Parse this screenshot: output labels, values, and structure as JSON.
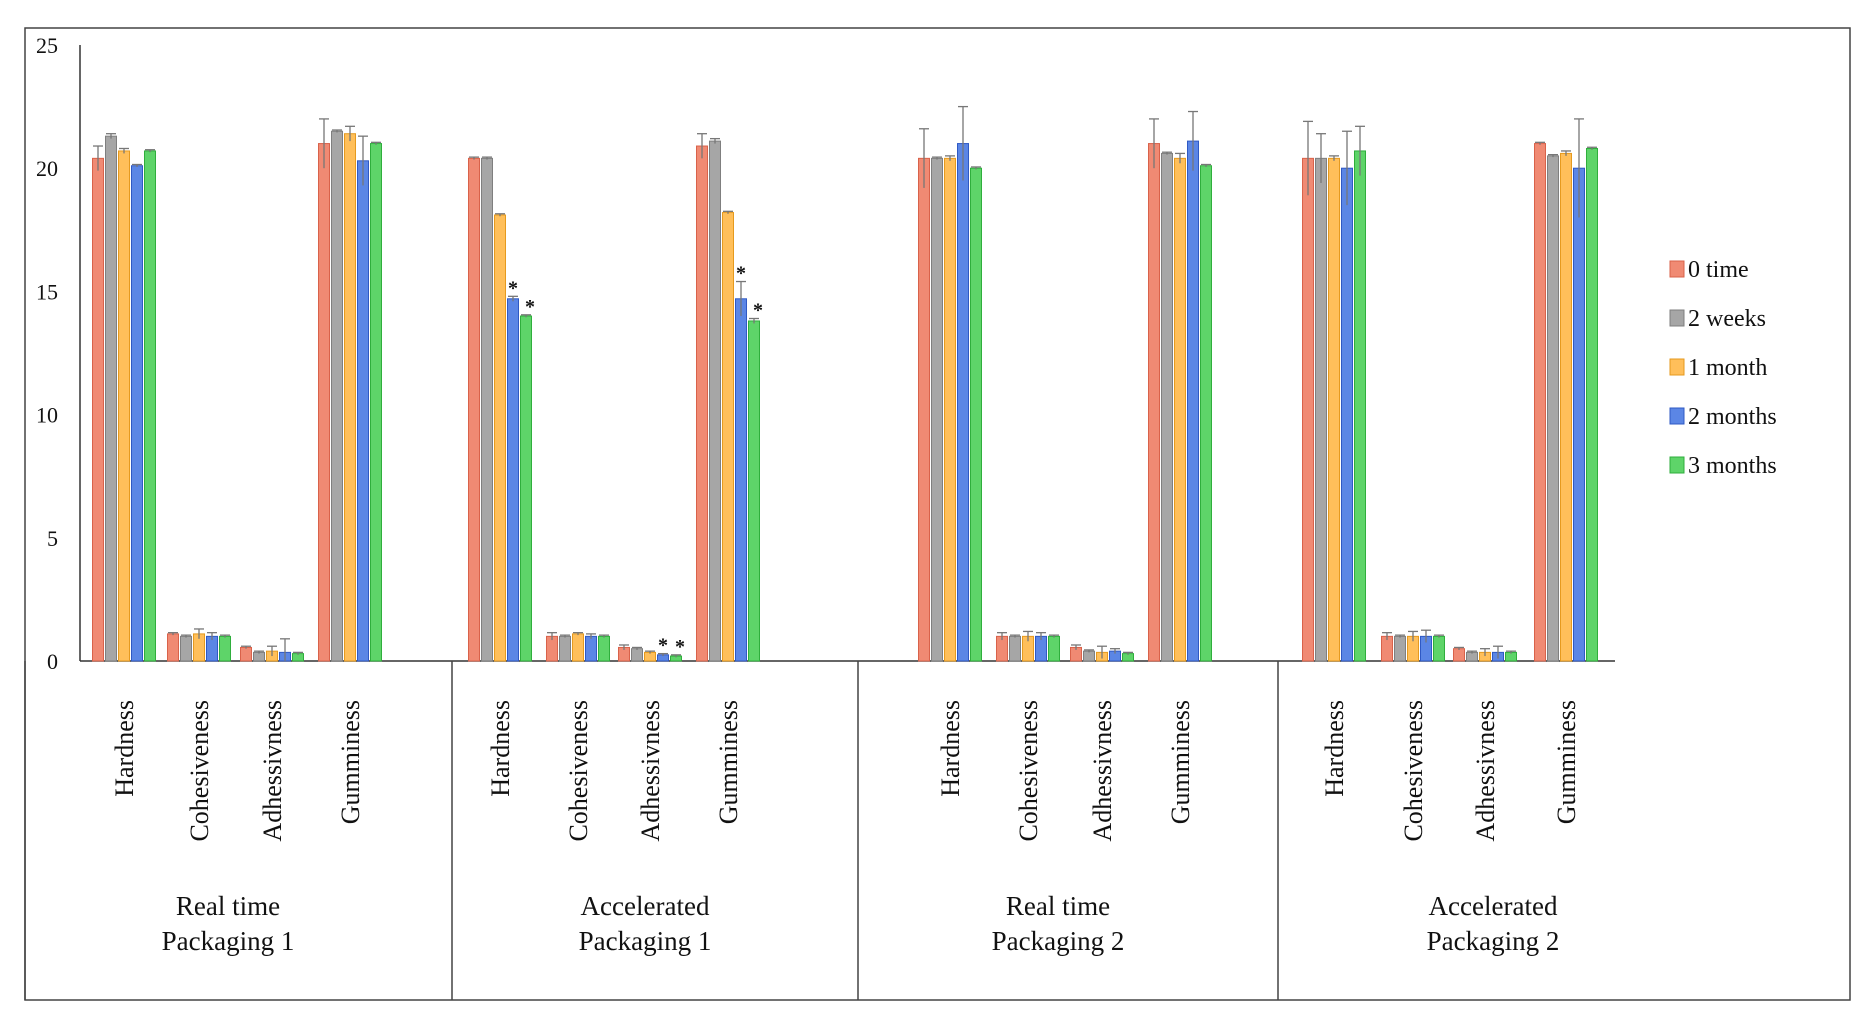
{
  "chart_data": {
    "type": "bar",
    "title": "",
    "ylabel": "",
    "ylim": [
      0,
      25
    ],
    "yticks": [
      0,
      5,
      10,
      15,
      20,
      25
    ],
    "legend_position": "right",
    "series": [
      {
        "name": "0 time",
        "color": "#F08A73",
        "stroke": "#D9624A"
      },
      {
        "name": "2 weeks",
        "color": "#A6A6A6",
        "stroke": "#7F7F7F"
      },
      {
        "name": "1 month",
        "color": "#FFBF5A",
        "stroke": "#E69A1E"
      },
      {
        "name": "2 months",
        "color": "#5B86E5",
        "stroke": "#2F59C4"
      },
      {
        "name": "3 months",
        "color": "#5ED469",
        "stroke": "#2FAE3C"
      }
    ],
    "groups": [
      {
        "label_line1": "Real time",
        "label_line2": "Packaging 1",
        "categories": [
          {
            "name": "Hardness",
            "values": [
              20.4,
              21.3,
              20.7,
              20.1,
              20.7
            ],
            "errors": [
              0.5,
              0.1,
              0.1,
              0.05,
              0.05
            ],
            "stars": [
              false,
              false,
              false,
              false,
              false
            ]
          },
          {
            "name": "Cohesiveness",
            "values": [
              1.1,
              1.0,
              1.1,
              1.0,
              1.0
            ],
            "errors": [
              0.05,
              0.05,
              0.2,
              0.15,
              0.05
            ],
            "stars": [
              false,
              false,
              false,
              false,
              false
            ]
          },
          {
            "name": "Adhessivness",
            "values": [
              0.55,
              0.35,
              0.4,
              0.35,
              0.3
            ],
            "errors": [
              0.05,
              0.05,
              0.2,
              0.55,
              0.05
            ],
            "stars": [
              false,
              false,
              false,
              false,
              false
            ]
          },
          {
            "name": "Gumminess",
            "values": [
              21.0,
              21.5,
              21.4,
              20.3,
              21.0
            ],
            "errors": [
              1.0,
              0.05,
              0.3,
              1.0,
              0.05
            ],
            "stars": [
              false,
              false,
              false,
              false,
              false
            ]
          }
        ]
      },
      {
        "label_line1": "Accelerated",
        "label_line2": "Packaging 1",
        "categories": [
          {
            "name": "Hardness",
            "values": [
              20.4,
              20.4,
              18.1,
              14.7,
              14.0
            ],
            "errors": [
              0.05,
              0.05,
              0.05,
              0.1,
              0.05
            ],
            "stars": [
              false,
              false,
              false,
              true,
              true
            ]
          },
          {
            "name": "Cohesiveness",
            "values": [
              1.0,
              1.0,
              1.1,
              1.0,
              1.0
            ],
            "errors": [
              0.15,
              0.05,
              0.05,
              0.1,
              0.05
            ],
            "stars": [
              false,
              false,
              false,
              false,
              false
            ]
          },
          {
            "name": "Adhessivness",
            "values": [
              0.55,
              0.5,
              0.35,
              0.25,
              0.2
            ],
            "errors": [
              0.1,
              0.05,
              0.05,
              0.05,
              0.05
            ],
            "stars": [
              false,
              false,
              false,
              true,
              true
            ]
          },
          {
            "name": "Gumminess",
            "values": [
              20.9,
              21.1,
              18.2,
              14.7,
              13.8
            ],
            "errors": [
              0.5,
              0.1,
              0.05,
              0.7,
              0.1
            ],
            "stars": [
              false,
              false,
              false,
              true,
              true
            ]
          }
        ]
      },
      {
        "label_line1": "Real time",
        "label_line2": "Packaging 2",
        "categories": [
          {
            "name": "Hardness",
            "values": [
              20.4,
              20.4,
              20.4,
              21.0,
              20.0
            ],
            "errors": [
              1.2,
              0.05,
              0.1,
              1.5,
              0.05
            ],
            "stars": [
              false,
              false,
              false,
              false,
              false
            ]
          },
          {
            "name": "Cohesiveness",
            "values": [
              1.0,
              1.0,
              1.0,
              1.0,
              1.0
            ],
            "errors": [
              0.15,
              0.05,
              0.2,
              0.15,
              0.05
            ],
            "stars": [
              false,
              false,
              false,
              false,
              false
            ]
          },
          {
            "name": "Adhessivness",
            "values": [
              0.55,
              0.4,
              0.35,
              0.4,
              0.3
            ],
            "errors": [
              0.1,
              0.05,
              0.25,
              0.1,
              0.05
            ],
            "stars": [
              false,
              false,
              false,
              false,
              false
            ]
          },
          {
            "name": "Gumminess",
            "values": [
              21.0,
              20.6,
              20.4,
              21.1,
              20.1
            ],
            "errors": [
              1.0,
              0.05,
              0.2,
              1.2,
              0.05
            ],
            "stars": [
              false,
              false,
              false,
              false,
              false
            ]
          }
        ]
      },
      {
        "label_line1": "Accelerated",
        "label_line2": "Packaging 2",
        "categories": [
          {
            "name": "Hardness",
            "values": [
              20.4,
              20.4,
              20.4,
              20.0,
              20.7
            ],
            "errors": [
              1.5,
              1.0,
              0.1,
              1.5,
              1.0
            ],
            "stars": [
              false,
              false,
              false,
              false,
              false
            ]
          },
          {
            "name": "Cohesiveness",
            "values": [
              1.0,
              1.0,
              1.0,
              1.0,
              1.0
            ],
            "errors": [
              0.15,
              0.05,
              0.2,
              0.25,
              0.05
            ],
            "stars": [
              false,
              false,
              false,
              false,
              false
            ]
          },
          {
            "name": "Adhessivness",
            "values": [
              0.5,
              0.35,
              0.35,
              0.35,
              0.35
            ],
            "errors": [
              0.05,
              0.05,
              0.15,
              0.25,
              0.05
            ],
            "stars": [
              false,
              false,
              false,
              false,
              false
            ]
          },
          {
            "name": "Gumminess",
            "values": [
              21.0,
              20.5,
              20.6,
              20.0,
              20.8
            ],
            "errors": [
              0.05,
              0.05,
              0.1,
              2.0,
              0.05
            ],
            "stars": [
              false,
              false,
              false,
              false,
              false
            ]
          }
        ]
      }
    ]
  }
}
